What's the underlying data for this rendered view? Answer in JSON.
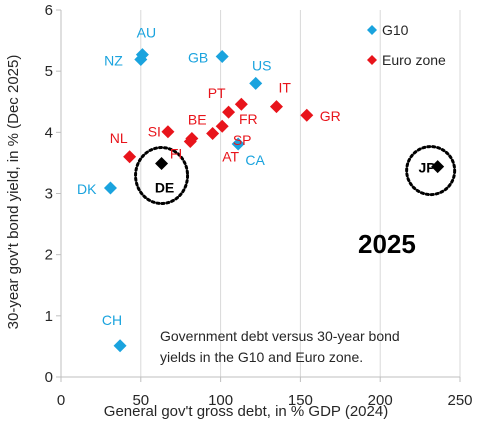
{
  "chart_data": {
    "type": "scatter",
    "xlabel": "General gov't gross debt, in % GDP (2024)",
    "ylabel": "30-year gov't bond yield, in % (Dec 2025)",
    "xlim": [
      0,
      250
    ],
    "ylim": [
      0,
      6
    ],
    "x_ticks": [
      "0",
      "50",
      "100",
      "150",
      "200",
      "250"
    ],
    "y_ticks": [
      "0",
      "1",
      "2",
      "3",
      "4",
      "5",
      "6"
    ],
    "grid": "vertical major gridlines",
    "legend_position": "top-right",
    "annotation_year": "2025",
    "caption_lines": [
      "Government debt versus 30-year bond",
      "yields in the G10 and Euro zone."
    ],
    "series": [
      {
        "name": "G10",
        "color": "#1AA3DE",
        "marker": "diamond",
        "points": [
          {
            "label": "AU",
            "x": 51,
            "y": 5.27
          },
          {
            "label": "NZ",
            "x": 50,
            "y": 5.19
          },
          {
            "label": "GB",
            "x": 101,
            "y": 5.24
          },
          {
            "label": "US",
            "x": 122,
            "y": 4.8
          },
          {
            "label": "CA",
            "x": 111,
            "y": 3.81
          },
          {
            "label": "DK",
            "x": 31,
            "y": 3.09
          },
          {
            "label": "CH",
            "x": 37,
            "y": 0.51
          }
        ]
      },
      {
        "name": "Euro zone",
        "color": "#E8141B",
        "marker": "diamond",
        "points": [
          {
            "label": "PT",
            "x": 105,
            "y": 4.33
          },
          {
            "label": "IT",
            "x": 135,
            "y": 4.42
          },
          {
            "label": "GR",
            "x": 154,
            "y": 4.28
          },
          {
            "label": "FR",
            "x": 113,
            "y": 4.46
          },
          {
            "label": "SI",
            "x": 67,
            "y": 4.01
          },
          {
            "label": "BE",
            "x": 82,
            "y": 3.9
          },
          {
            "label": "SP",
            "x": 101,
            "y": 4.1
          },
          {
            "label": "FI",
            "x": 81,
            "y": 3.85
          },
          {
            "label": "AT",
            "x": 95,
            "y": 3.98
          },
          {
            "label": "NL",
            "x": 43,
            "y": 3.6
          }
        ]
      },
      {
        "color": "#000000",
        "marker": "diamond",
        "points": [
          {
            "label": "DE",
            "x": 63,
            "y": 3.49
          },
          {
            "label": "JP",
            "x": 236,
            "y": 3.44
          }
        ]
      }
    ]
  }
}
